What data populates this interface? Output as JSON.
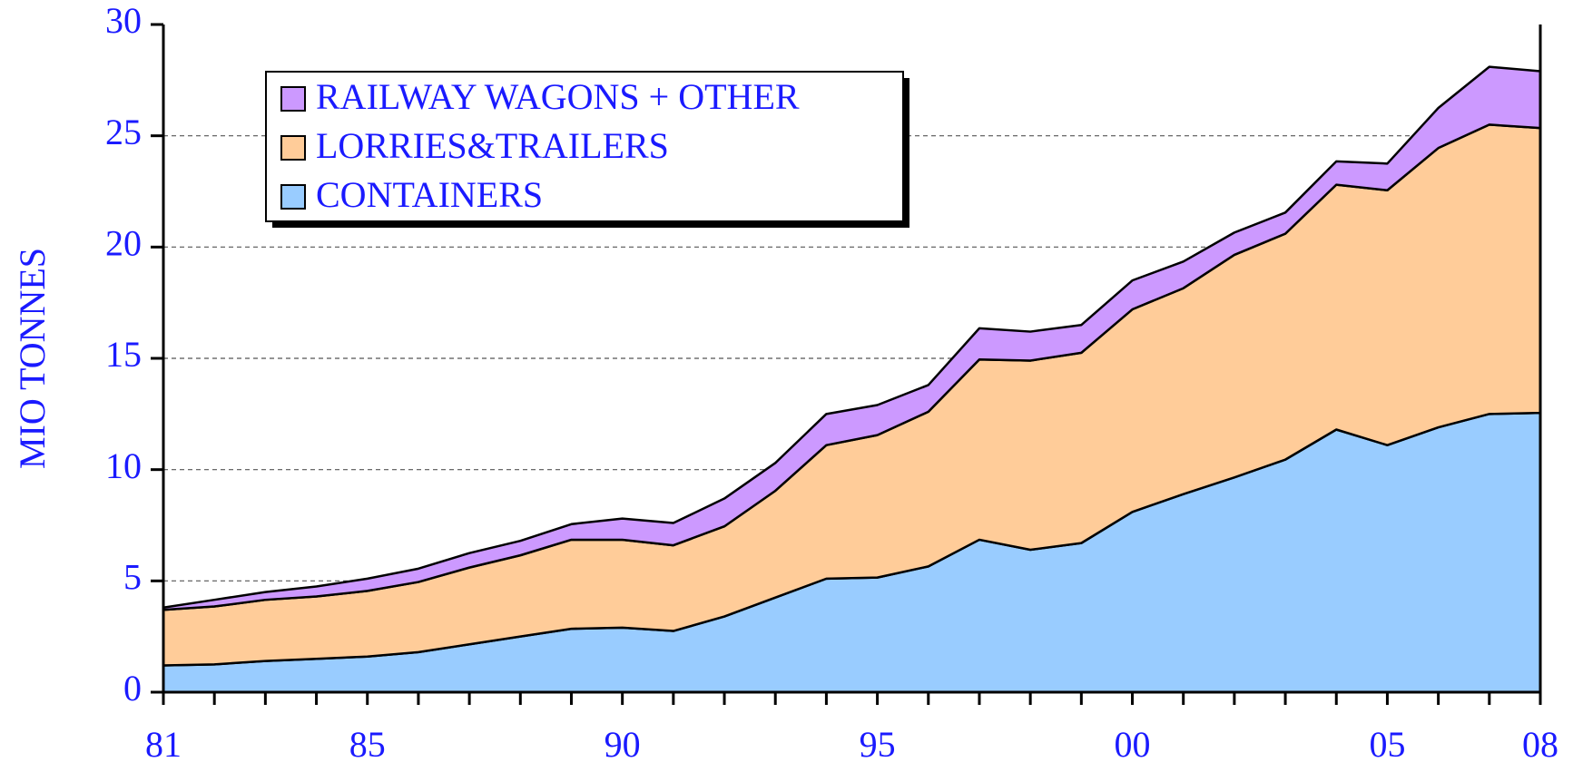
{
  "chart_data": {
    "type": "stacked_area",
    "y_label": "MIO TONNES",
    "categories": [
      "81",
      null,
      null,
      null,
      "85",
      null,
      null,
      null,
      null,
      "90",
      null,
      null,
      null,
      null,
      "95",
      null,
      null,
      null,
      null,
      "00",
      null,
      null,
      null,
      null,
      "05",
      null,
      null,
      "08"
    ],
    "series": [
      {
        "name": "CONTAINERS",
        "color": "#99ccff",
        "values": [
          1.2,
          1.25,
          1.4,
          1.5,
          1.6,
          1.8,
          2.15,
          2.5,
          2.85,
          2.9,
          2.75,
          3.4,
          4.25,
          5.1,
          5.15,
          5.65,
          6.85,
          6.4,
          6.7,
          8.1,
          8.9,
          9.65,
          10.45,
          11.8,
          11.1,
          11.9,
          12.5,
          12.55
        ]
      },
      {
        "name": "LORRIES&TRAILERS",
        "color": "#ffcc99",
        "values": [
          2.5,
          2.6,
          2.75,
          2.8,
          2.95,
          3.15,
          3.45,
          3.65,
          4.0,
          3.95,
          3.85,
          4.05,
          4.8,
          6.0,
          6.4,
          6.95,
          8.1,
          8.5,
          8.55,
          9.1,
          9.25,
          10.0,
          10.15,
          11.0,
          11.45,
          12.55,
          13.0,
          12.8
        ]
      },
      {
        "name": "RAILWAY WAGONS + OTHER",
        "color": "#cc99ff",
        "values": [
          0.1,
          0.3,
          0.35,
          0.45,
          0.55,
          0.6,
          0.65,
          0.65,
          0.7,
          0.95,
          1.0,
          1.25,
          1.25,
          1.4,
          1.35,
          1.2,
          1.4,
          1.3,
          1.25,
          1.3,
          1.2,
          1.0,
          0.95,
          1.05,
          1.2,
          1.8,
          2.6,
          2.55
        ]
      }
    ],
    "ylim": [
      0,
      30
    ],
    "yticks": [
      0,
      5,
      10,
      15,
      20,
      25,
      30
    ],
    "grid": true
  }
}
